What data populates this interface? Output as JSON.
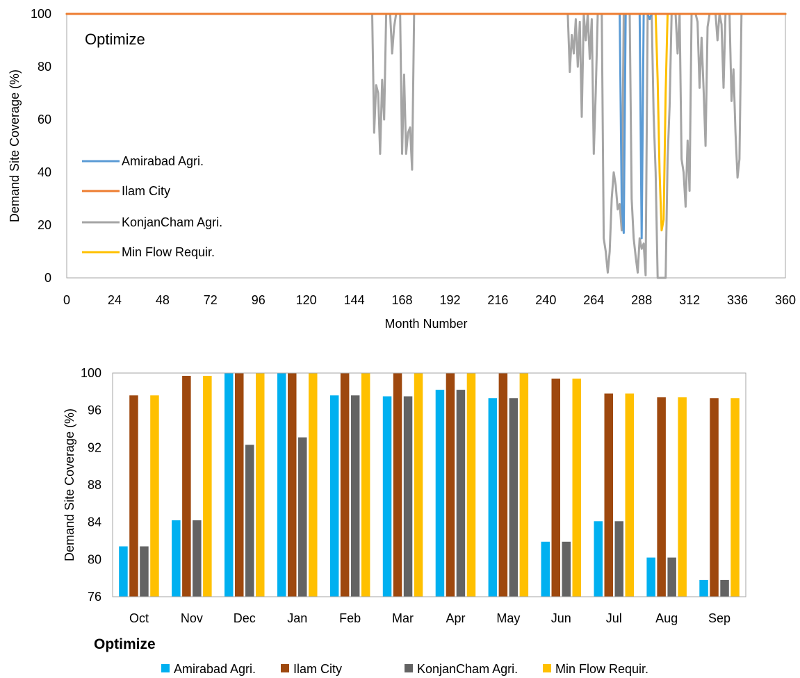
{
  "chart_data": [
    {
      "type": "line",
      "annotation": "Optimize",
      "xlabel": "Month Number",
      "ylabel": "Demand Site Coverage (%)",
      "xlim": [
        0,
        360
      ],
      "ylim": [
        0,
        100
      ],
      "x_ticks": [
        0,
        24,
        48,
        72,
        96,
        120,
        144,
        168,
        192,
        216,
        240,
        264,
        288,
        312,
        336,
        360
      ],
      "y_ticks": [
        0,
        20,
        40,
        60,
        80,
        100
      ],
      "grid": false,
      "legend_position": "left-middle",
      "series": [
        {
          "name": "Amirabad Agri.",
          "color": "#5B9BD5",
          "points": [
            [
              0,
              100
            ],
            [
              277,
              100
            ],
            [
              278,
              28
            ],
            [
              279,
              17
            ],
            [
              280,
              100
            ],
            [
              287,
              100
            ],
            [
              288,
              15
            ],
            [
              289,
              100
            ],
            [
              291,
              100
            ],
            [
              292,
              98
            ],
            [
              293,
              100
            ],
            [
              360,
              100
            ]
          ]
        },
        {
          "name": "Ilam City",
          "color": "#ED7D31",
          "points": [
            [
              0,
              100
            ],
            [
              360,
              100
            ]
          ]
        },
        {
          "name": "KonjanCham Agri.",
          "color": "#A5A5A5",
          "points": [
            [
              0,
              100
            ],
            [
              153,
              100
            ],
            [
              154,
              55
            ],
            [
              155,
              73
            ],
            [
              156,
              70
            ],
            [
              157,
              47
            ],
            [
              158,
              75
            ],
            [
              159,
              60
            ],
            [
              160,
              100
            ],
            [
              162,
              100
            ],
            [
              163,
              85
            ],
            [
              164,
              95
            ],
            [
              165,
              100
            ],
            [
              167,
              100
            ],
            [
              168,
              47
            ],
            [
              169,
              77
            ],
            [
              170,
              47
            ],
            [
              171,
              55
            ],
            [
              172,
              57
            ],
            [
              173,
              41
            ],
            [
              174,
              100
            ],
            [
              251,
              100
            ],
            [
              252,
              78
            ],
            [
              253,
              92
            ],
            [
              254,
              85
            ],
            [
              255,
              98
            ],
            [
              256,
              80
            ],
            [
              257,
              97
            ],
            [
              258,
              61
            ],
            [
              259,
              100
            ],
            [
              260,
              90
            ],
            [
              261,
              100
            ],
            [
              262,
              83
            ],
            [
              263,
              98
            ],
            [
              264,
              47
            ],
            [
              265,
              70
            ],
            [
              266,
              100
            ],
            [
              268,
              100
            ],
            [
              269,
              15
            ],
            [
              270,
              10
            ],
            [
              271,
              2
            ],
            [
              272,
              10
            ],
            [
              273,
              30
            ],
            [
              274,
              40
            ],
            [
              275,
              35
            ],
            [
              276,
              26
            ],
            [
              277,
              28
            ],
            [
              278,
              18
            ],
            [
              279,
              100
            ],
            [
              282,
              100
            ],
            [
              283,
              30
            ],
            [
              284,
              15
            ],
            [
              285,
              8
            ],
            [
              286,
              2
            ],
            [
              287,
              15
            ],
            [
              288,
              11
            ],
            [
              289,
              13
            ],
            [
              290,
              1
            ],
            [
              291,
              100
            ],
            [
              293,
              100
            ],
            [
              294,
              62
            ],
            [
              295,
              40
            ],
            [
              296,
              0
            ],
            [
              297,
              0
            ],
            [
              300,
              0
            ],
            [
              301,
              45
            ],
            [
              302,
              65
            ],
            [
              303,
              100
            ],
            [
              305,
              100
            ],
            [
              306,
              85
            ],
            [
              307,
              100
            ],
            [
              308,
              45
            ],
            [
              309,
              40
            ],
            [
              310,
              27
            ],
            [
              311,
              52
            ],
            [
              312,
              33
            ],
            [
              313,
              100
            ],
            [
              315,
              100
            ],
            [
              316,
              97
            ],
            [
              317,
              72
            ],
            [
              318,
              91
            ],
            [
              319,
              72
            ],
            [
              320,
              50
            ],
            [
              321,
              95
            ],
            [
              322,
              100
            ],
            [
              325,
              100
            ],
            [
              326,
              90
            ],
            [
              327,
              100
            ],
            [
              328,
              96
            ],
            [
              329,
              72
            ],
            [
              330,
              100
            ],
            [
              332,
              100
            ],
            [
              333,
              67
            ],
            [
              334,
              79
            ],
            [
              335,
              55
            ],
            [
              336,
              38
            ],
            [
              337,
              45
            ],
            [
              338,
              100
            ],
            [
              360,
              100
            ]
          ]
        },
        {
          "name": "Min Flow Requir.",
          "color": "#FFC000",
          "points": [
            [
              0,
              100
            ],
            [
              295,
              100
            ],
            [
              296,
              75
            ],
            [
              297,
              40
            ],
            [
              298,
              18
            ],
            [
              299,
              22
            ],
            [
              300,
              70
            ],
            [
              301,
              100
            ],
            [
              360,
              100
            ]
          ]
        }
      ]
    },
    {
      "type": "bar",
      "title": "Optimize",
      "xlabel": "",
      "ylabel": "Demand Site Coverage (%)",
      "ylim": [
        76,
        100
      ],
      "y_ticks": [
        76,
        80,
        84,
        88,
        92,
        96,
        100
      ],
      "grid": false,
      "legend_position": "bottom",
      "categories": [
        "Oct",
        "Nov",
        "Dec",
        "Jan",
        "Feb",
        "Mar",
        "Apr",
        "May",
        "Jun",
        "Jul",
        "Aug",
        "Sep"
      ],
      "series": [
        {
          "name": "Amirabad Agri.",
          "color": "#00B0F0",
          "values": [
            81.4,
            84.2,
            100,
            100,
            97.6,
            97.5,
            98.2,
            97.3,
            81.9,
            84.1,
            80.2,
            77.8
          ]
        },
        {
          "name": "Ilam City",
          "color": "#9E480E",
          "values": [
            97.6,
            99.7,
            100,
            100,
            100,
            100,
            100,
            100,
            99.4,
            97.8,
            97.4,
            97.3
          ]
        },
        {
          "name": "KonjanCham Agri.",
          "color": "#636363",
          "values": [
            81.4,
            84.2,
            92.3,
            93.1,
            97.6,
            97.5,
            98.2,
            97.3,
            81.9,
            84.1,
            80.2,
            77.8
          ]
        },
        {
          "name": "Min Flow Requir.",
          "color": "#FFC000",
          "values": [
            97.6,
            99.7,
            100,
            100,
            100,
            100,
            100,
            100,
            99.4,
            97.8,
            97.4,
            97.3
          ]
        }
      ]
    }
  ]
}
